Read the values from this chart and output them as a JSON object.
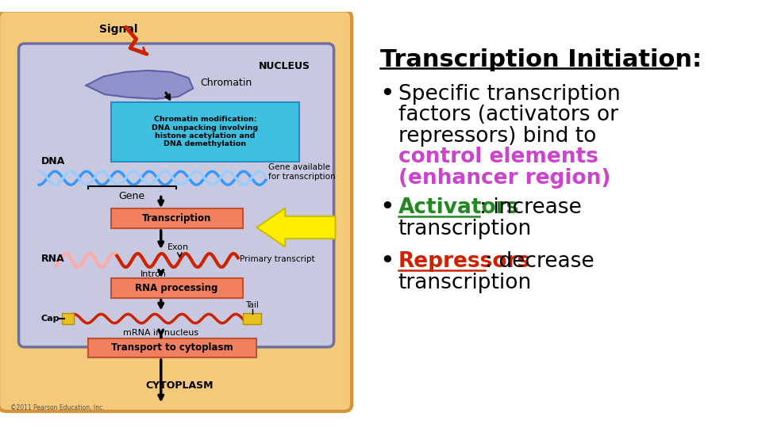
{
  "bg_color": "#ffffff",
  "title": "Transcription Initiation:",
  "title_color": "#000000",
  "title_fontsize": 22,
  "bullet1_purple_color": "#cc44cc",
  "bullet2_green_color": "#228822",
  "bullet3_red_color": "#cc2200",
  "black_color": "#000000",
  "bullet_color": "#000000",
  "fontsize_body": 19,
  "signal_label": "Signal",
  "nucleus_label": "NUCLEUS",
  "cytoplasm_label": "CYTOPLASM",
  "chromatin_label": "Chromatin",
  "dna_label": "DNA",
  "gene_label": "Gene",
  "transcription_label": "Transcription",
  "rna_label": "RNA",
  "exon_label": "Exon",
  "intron_label": "Intron",
  "primary_label": "Primary transcript",
  "rna_processing_label": "RNA processing",
  "cap_label": "Cap",
  "tail_label": "Tail",
  "mrna_label": "mRNA in nucleus",
  "transport_label": "Transport to cytoplasm",
  "gene_avail_label": "Gene available\nfor transcription",
  "chromatin_mod_label": "Chromatin modification:\nDNA unpacking involving\nhistone acetylation and\nDNA demethylation",
  "copyright": "©2011 Pearson Education, Inc."
}
